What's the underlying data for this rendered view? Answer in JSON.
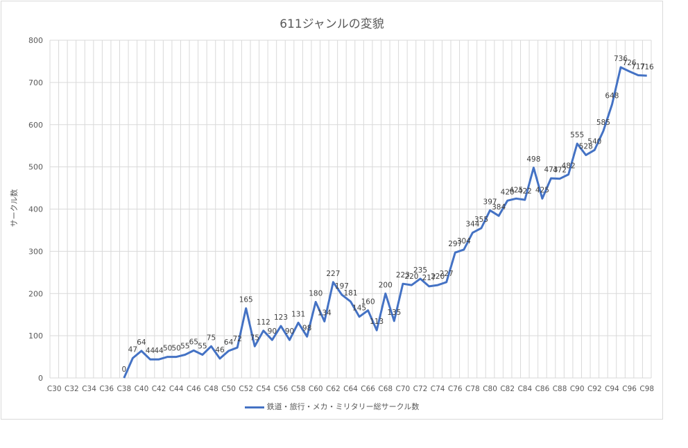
{
  "chart_data": {
    "type": "line",
    "title": "611ジャンルの変貌",
    "xlabel": "",
    "ylabel": "サークル数",
    "ylim": [
      0,
      800
    ],
    "yticks": [
      0,
      100,
      200,
      300,
      400,
      500,
      600,
      700,
      800
    ],
    "grid": true,
    "legend_position": "bottom",
    "line_color": "#4472c4",
    "categories": [
      "C30",
      "C31",
      "C32",
      "C33",
      "C34",
      "C35",
      "C36",
      "C37",
      "C38",
      "C39",
      "C40",
      "C41",
      "C42",
      "C43",
      "C44",
      "C45",
      "C46",
      "C47",
      "C48",
      "C49",
      "C50",
      "C51",
      "C52",
      "C53",
      "C54",
      "C55",
      "C56",
      "C57",
      "C58",
      "C59",
      "C60",
      "C61",
      "C62",
      "C63",
      "C64",
      "C65",
      "C66",
      "C67",
      "C68",
      "C69",
      "C70",
      "C71",
      "C72",
      "C73",
      "C74",
      "C75",
      "C76",
      "C77",
      "C78",
      "C79",
      "C80",
      "C81",
      "C82",
      "C83",
      "C84",
      "C85",
      "C86",
      "C87",
      "C88",
      "C89",
      "C90",
      "C91",
      "C92",
      "C93",
      "C94",
      "C95",
      "C96",
      "C97",
      "C98"
    ],
    "xtick_labels": [
      "C30",
      "C32",
      "C34",
      "C36",
      "C38",
      "C40",
      "C42",
      "C44",
      "C46",
      "C48",
      "C50",
      "C52",
      "C54",
      "C56",
      "C58",
      "C60",
      "C62",
      "C64",
      "C66",
      "C68",
      "C70",
      "C72",
      "C74",
      "C76",
      "C78",
      "C80",
      "C82",
      "C84",
      "C86",
      "C88",
      "C90",
      "C92",
      "C94",
      "C96",
      "C98"
    ],
    "series": [
      {
        "name": "鉄道・旅行・メカ・ミリタリー総サークル数",
        "values": [
          null,
          null,
          null,
          null,
          null,
          null,
          null,
          null,
          0,
          47,
          64,
          44,
          44,
          50,
          50,
          55,
          65,
          55,
          75,
          46,
          64,
          72,
          165,
          75,
          112,
          90,
          123,
          90,
          131,
          98,
          180,
          134,
          227,
          197,
          181,
          145,
          160,
          113,
          200,
          135,
          223,
          220,
          235,
          217,
          220,
          227,
          297,
          304,
          344,
          355,
          397,
          384,
          420,
          425,
          422,
          498,
          425,
          473,
          472,
          482,
          555,
          528,
          540,
          585,
          648,
          736,
          726,
          717,
          716
        ]
      }
    ]
  },
  "title": "611ジャンルの変貌",
  "ylabel": "サークル数",
  "legend_label": "鉄道・旅行・メカ・ミリタリー総サークル数"
}
